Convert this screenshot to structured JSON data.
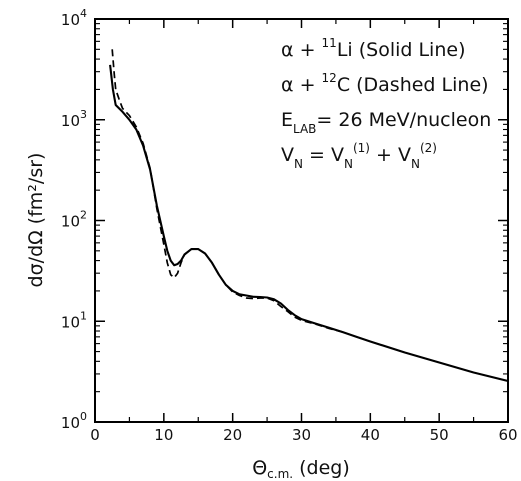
{
  "chart_data": {
    "type": "line",
    "xlabel": {
      "symbol": "Θ",
      "subscript": "c.m.",
      "unit": "(deg)"
    },
    "ylabel": "dσ/dΩ (fm²/sr)",
    "xlim": [
      0,
      60
    ],
    "ylim": [
      1,
      10000
    ],
    "yscale": "log",
    "x_ticks": [
      0,
      10,
      20,
      30,
      40,
      50,
      60
    ],
    "y_ticks": [
      {
        "value": 1,
        "base": "10",
        "exp": "0"
      },
      {
        "value": 10,
        "base": "10",
        "exp": "1"
      },
      {
        "value": 100,
        "base": "10",
        "exp": "2"
      },
      {
        "value": 1000,
        "base": "10",
        "exp": "3"
      },
      {
        "value": 10000,
        "base": "10",
        "exp": "4"
      }
    ],
    "grid": false,
    "series": [
      {
        "name": "α + ¹¹Li (Solid Line)",
        "style": "solid",
        "x": [
          2.2,
          2.6,
          3,
          4,
          5,
          6,
          7,
          8,
          9,
          10,
          10.5,
          11,
          11.5,
          12,
          12.5,
          13,
          14,
          15,
          16,
          17,
          18,
          19,
          20,
          21,
          22,
          23,
          24,
          25,
          26,
          27,
          28,
          29,
          30,
          32,
          34,
          36,
          38,
          40,
          45,
          50,
          55,
          60
        ],
        "y": [
          3500,
          2000,
          1400,
          1200,
          1000,
          800,
          550,
          320,
          140,
          70,
          50,
          40,
          36,
          37,
          40,
          46,
          52,
          52,
          47,
          38,
          29,
          23,
          20,
          18.5,
          18,
          17.5,
          17.4,
          17.2,
          16.5,
          15,
          13,
          11.5,
          10.5,
          9.5,
          8.6,
          7.8,
          7,
          6.3,
          4.9,
          3.9,
          3.1,
          2.55
        ]
      },
      {
        "name": "α + ¹²C (Dashed Line)",
        "style": "dashed",
        "x": [
          2.5,
          2.8,
          3,
          3.5,
          4,
          5,
          6,
          7,
          8,
          9,
          10,
          10.5,
          11,
          11.5,
          12,
          12.5,
          13,
          14,
          15,
          16,
          17,
          18,
          19,
          20,
          21,
          22,
          23,
          24,
          25,
          26,
          27,
          28,
          29,
          30,
          32,
          34,
          36
        ],
        "y": [
          5000,
          2800,
          2000,
          1600,
          1300,
          1100,
          850,
          580,
          330,
          130,
          58,
          38,
          29,
          27,
          30,
          38,
          46,
          52,
          52,
          47,
          38,
          29,
          23,
          19.5,
          18,
          17,
          16.8,
          17,
          17,
          16,
          14,
          12.5,
          11,
          10.2,
          9.4,
          8.5,
          7.8
        ]
      }
    ],
    "annotations": [
      {
        "parts": [
          {
            "t": "α + "
          },
          {
            "t": "11",
            "sup": true
          },
          {
            "t": "Li (Solid Line)"
          }
        ]
      },
      {
        "parts": [
          {
            "t": "α + "
          },
          {
            "t": "12",
            "sup": true
          },
          {
            "t": "C (Dashed Line)"
          }
        ]
      },
      {
        "parts": [
          {
            "t": "E"
          },
          {
            "t": "LAB",
            "sub": true
          },
          {
            "t": "= 26 MeV/nucleon"
          }
        ]
      },
      {
        "parts": [
          {
            "t": "V"
          },
          {
            "t": "N",
            "sub": true
          },
          {
            "t": " = V"
          },
          {
            "t": "N",
            "sub": true
          },
          {
            "t": "(1)",
            "sup": true
          },
          {
            "t": " + V"
          },
          {
            "t": "N",
            "sub": true
          },
          {
            "t": "(2)",
            "sup": true
          }
        ]
      }
    ]
  }
}
